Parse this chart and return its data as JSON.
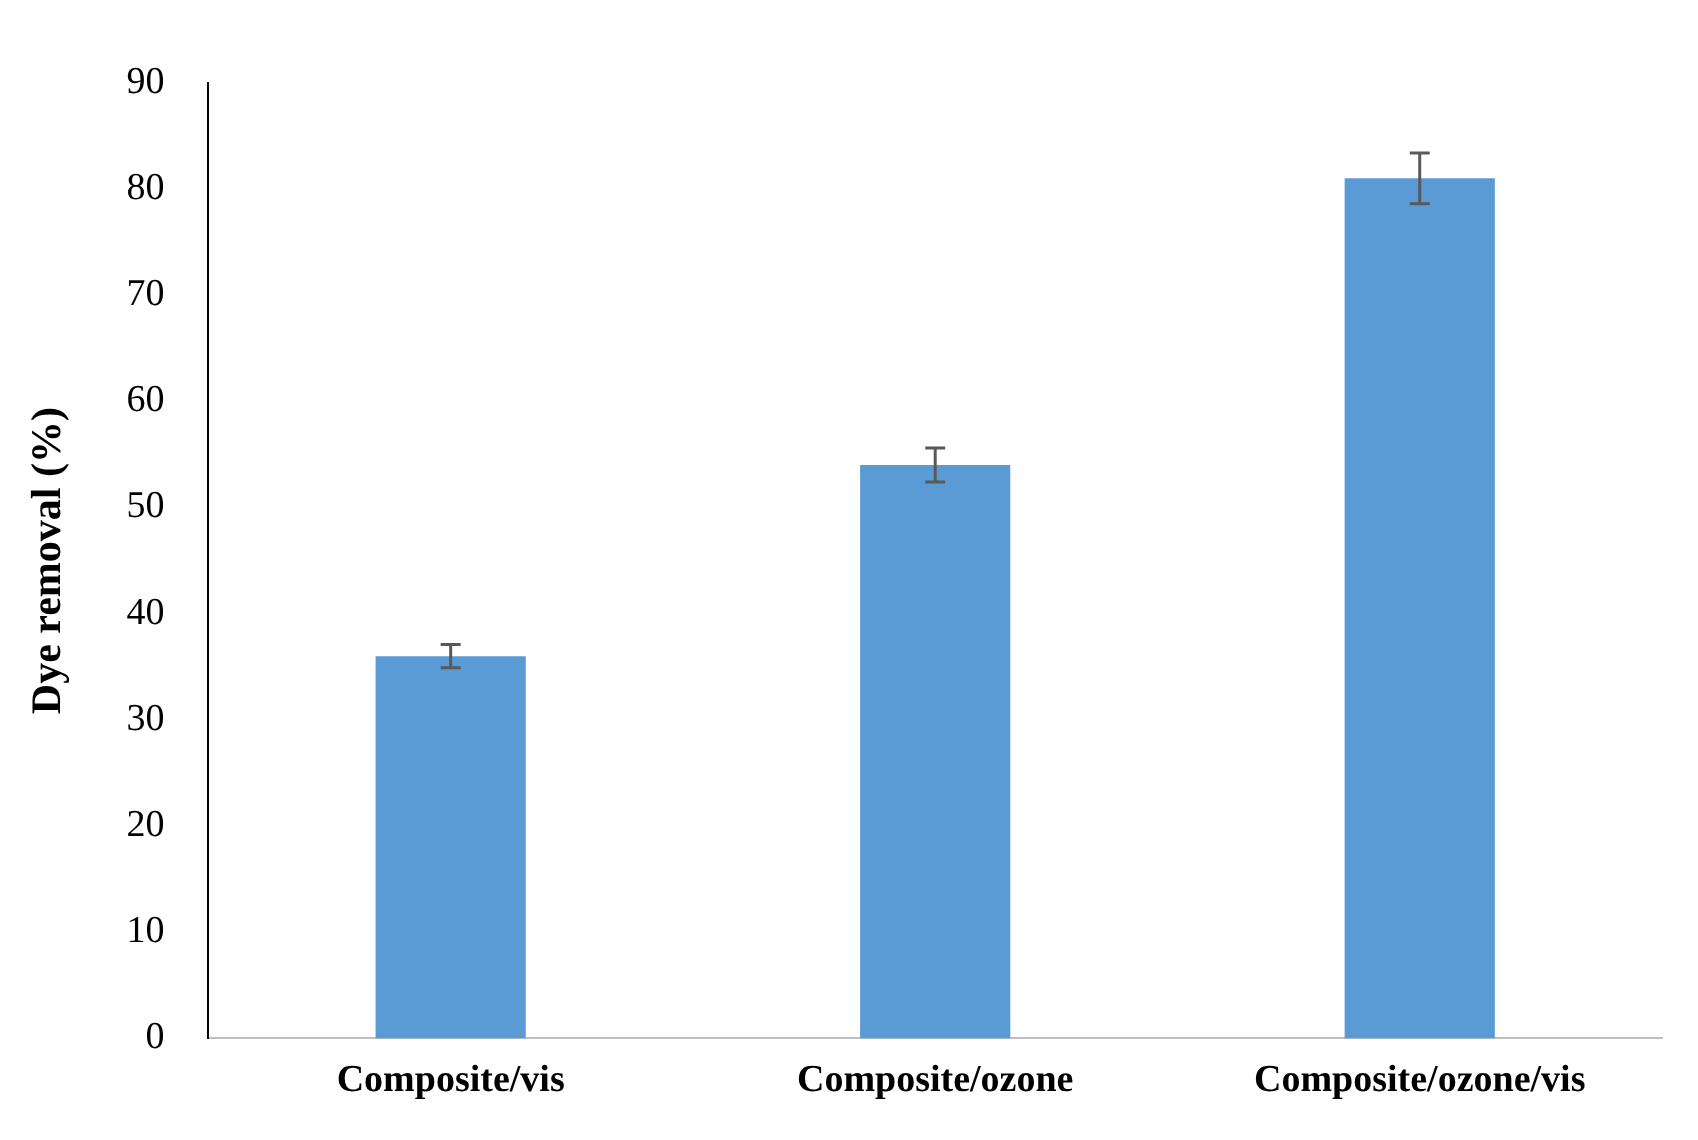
{
  "chart_data": {
    "type": "bar",
    "ylabel": "Dye removal (%)",
    "categories": [
      "Composite/vis",
      "Composite/ozone",
      "Composite/ozone/vis"
    ],
    "values": [
      36,
      54,
      81
    ],
    "errors": [
      1.1,
      1.6,
      2.4
    ],
    "color": "#5b9bd5",
    "ylim": [
      0,
      90
    ],
    "yticks": [
      0,
      10,
      20,
      30,
      40,
      50,
      60,
      70,
      80,
      90
    ],
    "grid": false,
    "legend": false
  }
}
